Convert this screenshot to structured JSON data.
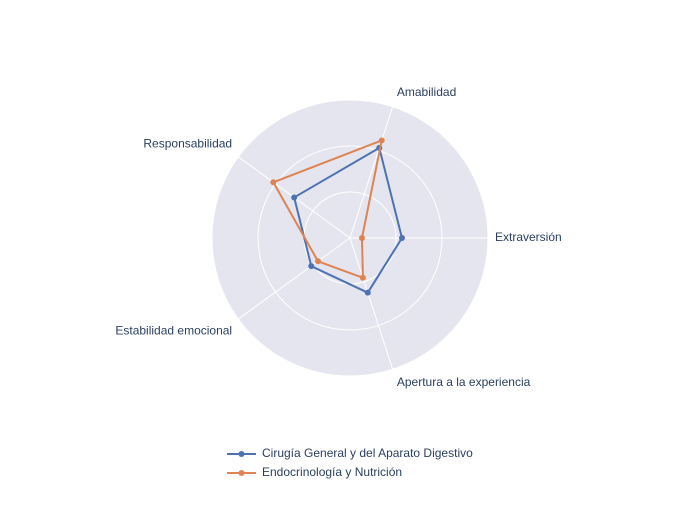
{
  "chart_data": {
    "type": "radar",
    "categories": [
      "Extraversión",
      "Amabilidad",
      "Responsabilidad",
      "Estabilidad emocional",
      "Apertura a la experiencia"
    ],
    "rlim": [
      0,
      3
    ],
    "rticks": [
      1,
      2,
      3
    ],
    "grid": true,
    "legend": "bottom",
    "series": [
      {
        "name": "Cirugía General y del Aparato Digestivo",
        "color": "#4c72b0",
        "values": [
          1.13,
          2.06,
          1.5,
          1.04,
          1.25
        ]
      },
      {
        "name": "Endocrinología y Nutrición",
        "color": "#dd8452",
        "values": [
          0.26,
          2.23,
          2.06,
          0.86,
          0.91
        ]
      }
    ]
  }
}
